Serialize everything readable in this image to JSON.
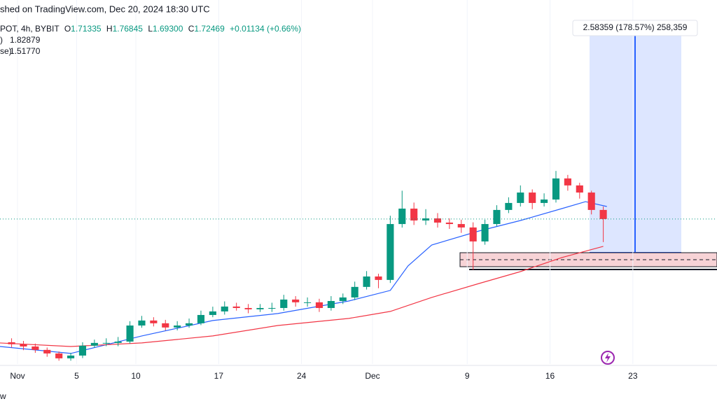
{
  "chart_data": {
    "type": "candlestick",
    "title": "shed on TradingView.com, Dec 20, 2024 18:30 UTC",
    "legend": {
      "symbol": "POT, 4h, BYBIT",
      "o_label": "O",
      "open": 1.71335,
      "h_label": "H",
      "high": 1.76845,
      "l_label": "L",
      "low": {
        "value": 1.693,
        "label": "1.69300"
      },
      "c_label": "C",
      "close": 1.72469,
      "change": "+0.01134 (+0.66%)"
    },
    "footer": "w",
    "measure_label": "2.58359 (178.57%) 258,359",
    "xlim": [
      -1.48,
      59.11
    ],
    "ylim": [
      0.625,
      3.387
    ],
    "xticks": [
      {
        "value": 0,
        "label": "Nov"
      },
      5,
      10,
      17,
      24,
      {
        "value": 30,
        "label": "Dec"
      },
      {
        "value": 38,
        "label": "9"
      },
      {
        "value": 45,
        "label": "16"
      },
      {
        "value": 52,
        "label": "23"
      }
    ],
    "up_color": "#089981",
    "down_color": "#f23645",
    "x": [
      -0.5,
      0.5,
      1.5,
      2.5,
      3.5,
      4.5,
      5.5,
      6.5,
      7.5,
      8.5,
      9.5,
      10.5,
      11.5,
      12.5,
      13.5,
      14.5,
      15.5,
      16.5,
      17.5,
      18.5,
      19.5,
      20.5,
      21.5,
      22.5,
      23.5,
      24.5,
      25.5,
      26.5,
      27.5,
      28.5,
      29.5,
      30.5,
      31.5,
      32.5,
      33.5,
      34.5,
      35.5,
      36.5,
      37.5,
      38.5,
      39.5,
      40.5,
      41.5,
      42.5,
      43.5,
      44.5,
      45.5,
      46.5,
      47.5,
      48.5,
      49.5
    ],
    "open": [
      0.79,
      0.775,
      0.758,
      0.732,
      0.705,
      0.668,
      0.689,
      0.764,
      0.785,
      0.785,
      0.795,
      0.917,
      0.955,
      0.934,
      0.902,
      0.917,
      0.934,
      0.997,
      1.024,
      1.061,
      1.05,
      1.04,
      1.05,
      1.05,
      1.114,
      1.093,
      1.093,
      1.05,
      1.103,
      1.13,
      1.21,
      1.289,
      1.263,
      1.687,
      1.804,
      1.714,
      1.73,
      1.698,
      1.687,
      1.661,
      1.555,
      1.687,
      1.794,
      1.847,
      1.926,
      1.847,
      1.873,
      2.033,
      1.98,
      1.926,
      1.794
    ],
    "high": [
      0.82,
      0.8,
      0.78,
      0.75,
      0.72,
      0.71,
      0.79,
      0.81,
      0.82,
      0.83,
      0.95,
      0.99,
      0.98,
      0.96,
      0.95,
      0.97,
      1.03,
      1.06,
      1.1,
      1.09,
      1.08,
      1.08,
      1.09,
      1.15,
      1.14,
      1.13,
      1.12,
      1.14,
      1.16,
      1.25,
      1.33,
      1.31,
      1.75,
      1.94,
      1.85,
      1.8,
      1.77,
      1.73,
      1.72,
      1.7,
      1.72,
      1.83,
      1.89,
      1.98,
      1.95,
      1.92,
      2.09,
      2.06,
      2.0,
      1.94,
      1.82
    ],
    "low": [
      0.75,
      0.73,
      0.71,
      0.68,
      0.65,
      0.65,
      0.67,
      0.75,
      0.76,
      0.76,
      0.78,
      0.9,
      0.91,
      0.88,
      0.88,
      0.9,
      0.92,
      0.98,
      1.0,
      1.03,
      1.01,
      1.02,
      1.02,
      1.03,
      1.06,
      1.06,
      1.02,
      1.03,
      1.08,
      1.11,
      1.19,
      1.2,
      1.24,
      1.66,
      1.68,
      1.68,
      1.66,
      1.65,
      1.62,
      1.34,
      1.53,
      1.67,
      1.77,
      1.82,
      1.8,
      1.82,
      1.85,
      1.94,
      1.88,
      1.76,
      1.55
    ],
    "close": [
      0.775,
      0.758,
      0.732,
      0.705,
      0.668,
      0.689,
      0.764,
      0.785,
      0.785,
      0.795,
      0.917,
      0.955,
      0.934,
      0.902,
      0.917,
      0.934,
      0.997,
      1.024,
      1.061,
      1.05,
      1.04,
      1.05,
      1.05,
      1.114,
      1.093,
      1.093,
      1.05,
      1.103,
      1.13,
      1.21,
      1.289,
      1.263,
      1.687,
      1.804,
      1.714,
      1.73,
      1.698,
      1.687,
      1.661,
      1.555,
      1.687,
      1.794,
      1.847,
      1.926,
      1.847,
      1.873,
      2.033,
      1.98,
      1.926,
      1.794,
      1.725
    ],
    "series": [
      {
        "name": ")",
        "label": "1.82879",
        "color": "#2962ff",
        "x": [
          -1.5,
          4.5,
          10.5,
          16.5,
          22,
          28,
          31.5,
          33,
          35,
          39,
          42.5,
          46,
          48,
          49.8
        ],
        "values": [
          0.758,
          0.705,
          0.838,
          0.955,
          1.008,
          1.103,
          1.183,
          1.369,
          1.528,
          1.634,
          1.714,
          1.804,
          1.857,
          1.82
        ]
      },
      {
        "name": "se)",
        "label": "1.51770",
        "color": "#f23645",
        "x": [
          -1.5,
          4.5,
          10.5,
          16.5,
          22,
          28,
          31.5,
          35,
          39,
          42.5,
          46,
          49.5
        ],
        "values": [
          0.785,
          0.758,
          0.785,
          0.838,
          0.917,
          0.971,
          1.024,
          1.13,
          1.236,
          1.326,
          1.433,
          1.518
        ]
      }
    ]
  }
}
